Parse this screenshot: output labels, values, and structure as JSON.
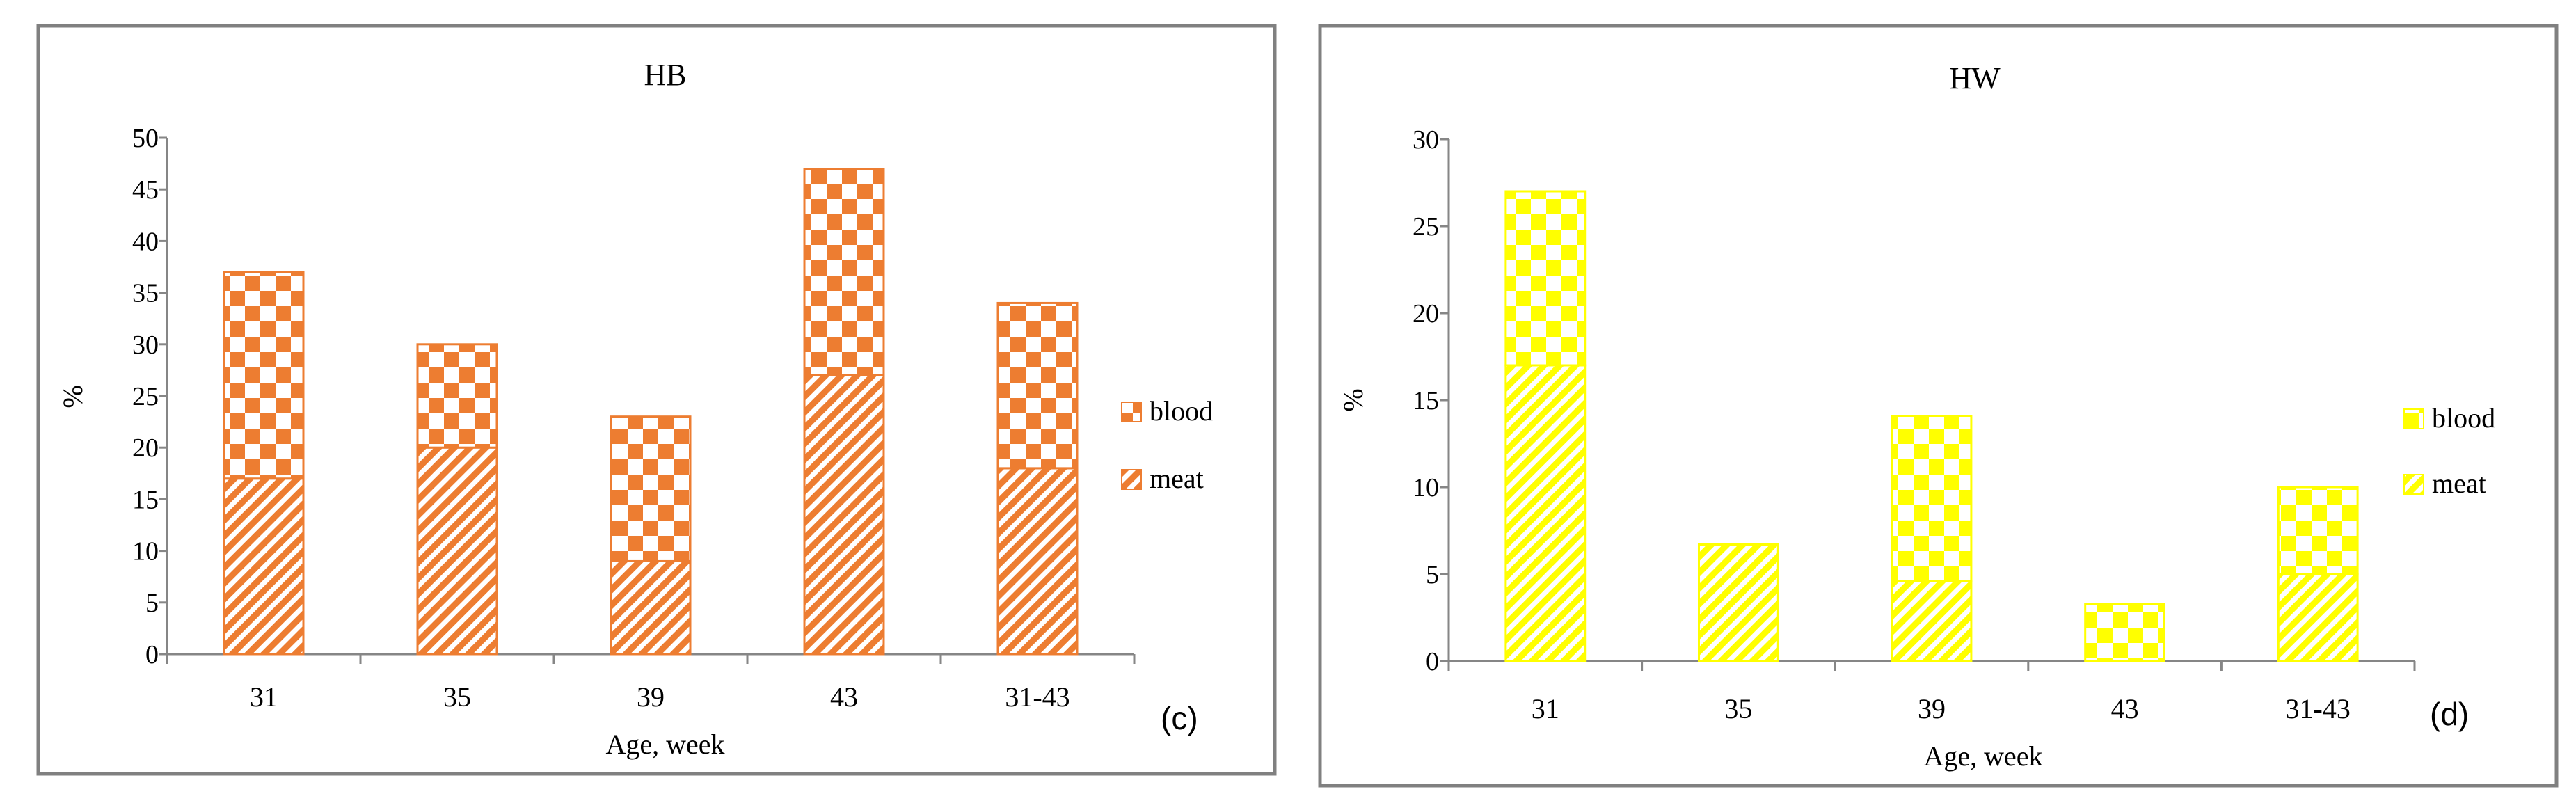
{
  "panel_letters": [
    "(c)",
    "(d)"
  ],
  "colors": {
    "hb_accent": "#ED7D31",
    "hw_accent": "#FFFF00",
    "axis": "#868686",
    "frame": "#808080"
  },
  "chart_data": [
    {
      "type": "bar",
      "stacked": true,
      "title": "HB",
      "xlabel": "Age, week",
      "ylabel": "%",
      "categories": [
        "31",
        "35",
        "39",
        "43",
        "31-43"
      ],
      "ylim": [
        0,
        50
      ],
      "ytick_step": 5,
      "yticks": [
        "0",
        "5",
        "10",
        "15",
        "20",
        "25",
        "30",
        "35",
        "40",
        "45",
        "50"
      ],
      "legend_position": "right",
      "series": [
        {
          "name": "meat",
          "pattern": "diagonal-stripes",
          "values": [
            17,
            20,
            9,
            27,
            18
          ]
        },
        {
          "name": "blood",
          "pattern": "checkerboard",
          "values": [
            20,
            10,
            14,
            20,
            16
          ]
        }
      ],
      "legend": [
        "blood",
        "meat"
      ]
    },
    {
      "type": "bar",
      "stacked": true,
      "title": "HW",
      "xlabel": "Age, week",
      "ylabel": "%",
      "categories": [
        "31",
        "35",
        "39",
        "43",
        "31-43"
      ],
      "ylim": [
        0,
        30
      ],
      "ytick_step": 5,
      "yticks": [
        "0",
        "5",
        "10",
        "15",
        "20",
        "25",
        "30"
      ],
      "legend_position": "right",
      "series": [
        {
          "name": "meat",
          "pattern": "diagonal-stripes",
          "values": [
            17,
            6.7,
            4.6,
            0,
            5
          ]
        },
        {
          "name": "blood",
          "pattern": "checkerboard",
          "values": [
            10,
            0,
            9.5,
            3.3,
            5
          ]
        }
      ],
      "legend": [
        "blood",
        "meat"
      ]
    }
  ]
}
